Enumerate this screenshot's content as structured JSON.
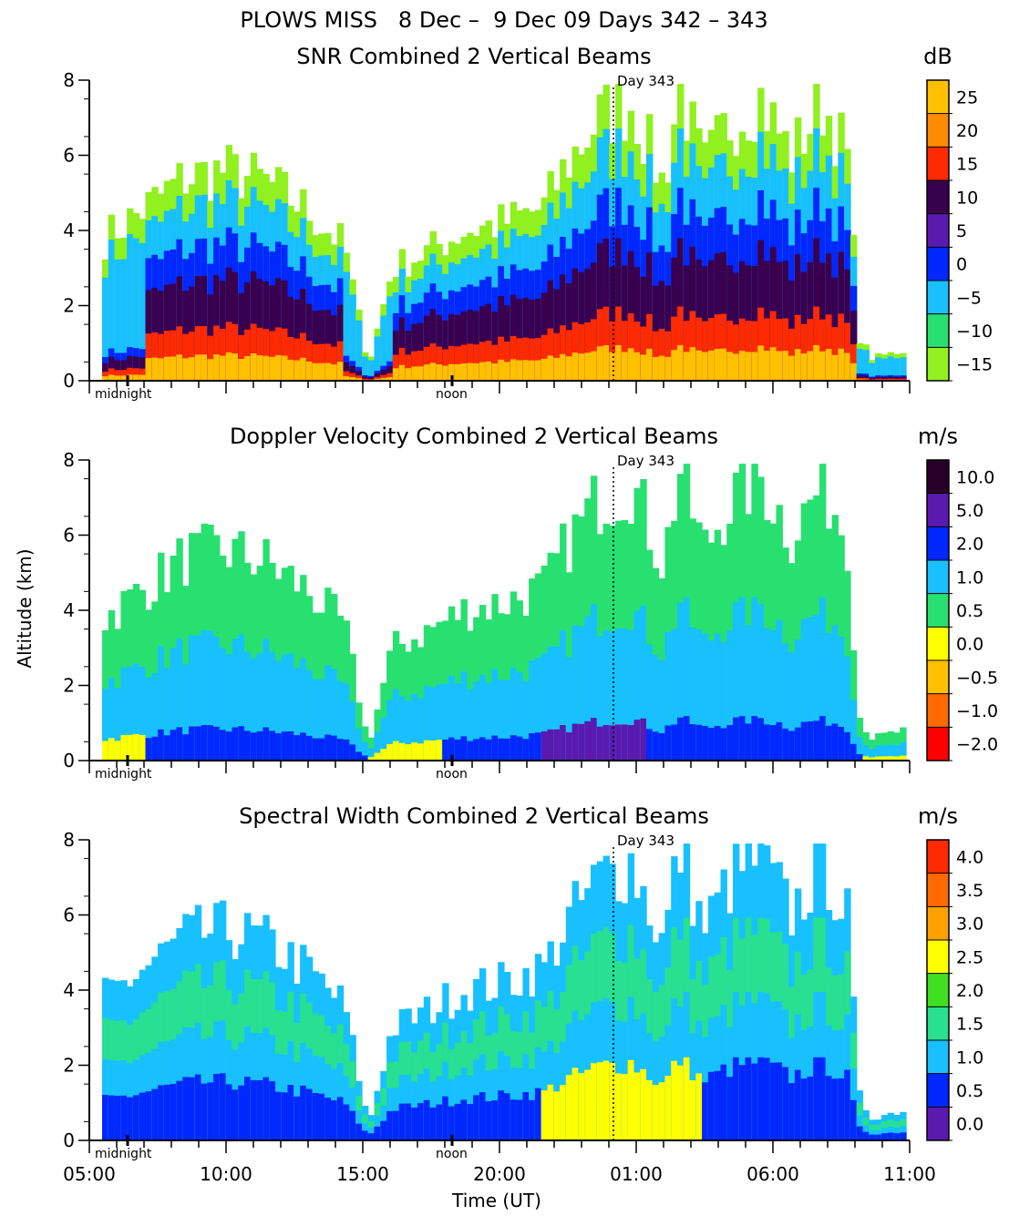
{
  "title": "PLOWS MISS   8 Dec –  9 Dec 09 Days 342 – 343",
  "ylabel": "Altitude (km)",
  "xlabel": "Time (UT)",
  "time_ticks": [
    "05:00",
    "10:00",
    "15:00",
    "20:00",
    "01:00",
    "06:00",
    "11:00"
  ],
  "y_ticks": [
    "0",
    "2",
    "4",
    "6",
    "8"
  ],
  "marker_labels": {
    "midnight": "midnight",
    "noon": "noon",
    "day": "Day 343"
  },
  "chart_data": [
    {
      "type": "heatmap",
      "title": "SNR Combined 2 Vertical Beams",
      "unit": "dB",
      "xlabel": "Time (UT)",
      "ylabel": "Altitude (km)",
      "x_ticks": [
        "05:00",
        "10:00",
        "15:00",
        "20:00",
        "01:00",
        "06:00",
        "11:00"
      ],
      "ylim": [
        0,
        8
      ],
      "colorbar": {
        "labels": [
          "25",
          "20",
          "15",
          "10",
          "5",
          "0",
          "−5",
          "−10",
          "−15"
        ],
        "colors": [
          "#ffc000",
          "#ff8c00",
          "#ff2a00",
          "#3a0050",
          "#5a1ab0",
          "#0028ff",
          "#18c0ff",
          "#28e070",
          "#90f020"
        ]
      },
      "annotations": [
        "Day 343",
        "midnight",
        "noon"
      ]
    },
    {
      "type": "heatmap",
      "title": "Doppler Velocity Combined 2 Vertical Beams",
      "unit": "m/s",
      "xlabel": "Time (UT)",
      "ylabel": "Altitude (km)",
      "x_ticks": [
        "05:00",
        "10:00",
        "15:00",
        "20:00",
        "01:00",
        "06:00",
        "11:00"
      ],
      "ylim": [
        0,
        8
      ],
      "colorbar": {
        "labels": [
          "10.0",
          "5.0",
          "2.0",
          "1.0",
          "0.5",
          "0.0",
          "−0.5",
          "−1.0",
          "−2.0"
        ],
        "colors": [
          "#28002a",
          "#5a1ab0",
          "#0028ff",
          "#18c0ff",
          "#28e070",
          "#ffff00",
          "#ffc000",
          "#ff6a00",
          "#ff0000"
        ]
      },
      "annotations": [
        "Day 343",
        "midnight",
        "noon"
      ]
    },
    {
      "type": "heatmap",
      "title": "Spectral Width Combined 2 Vertical Beams",
      "unit": "m/s",
      "xlabel": "Time (UT)",
      "ylabel": "Altitude (km)",
      "x_ticks": [
        "05:00",
        "10:00",
        "15:00",
        "20:00",
        "01:00",
        "06:00",
        "11:00"
      ],
      "ylim": [
        0,
        8
      ],
      "colorbar": {
        "labels": [
          "4.0",
          "3.5",
          "3.0",
          "2.5",
          "2.0",
          "1.5",
          "1.0",
          "0.5",
          "0.0"
        ],
        "colors": [
          "#ff2a00",
          "#ff6a00",
          "#ffa000",
          "#ffff00",
          "#40e020",
          "#28e090",
          "#18c0ff",
          "#0028ff",
          "#5a1ab0"
        ]
      },
      "annotations": [
        "Day 343",
        "midnight",
        "noon"
      ]
    }
  ]
}
